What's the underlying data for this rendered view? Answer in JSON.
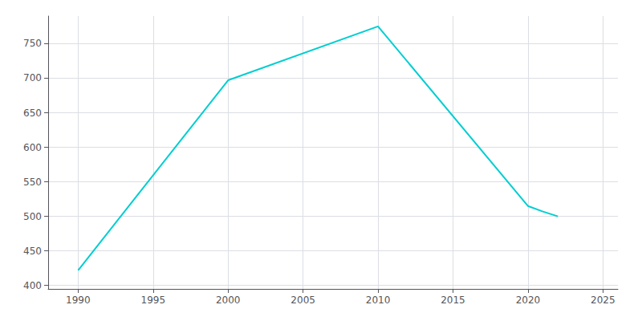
{
  "chart_data": {
    "type": "line",
    "x": [
      1990,
      2000,
      2010,
      2020,
      2021,
      2022
    ],
    "values": [
      422,
      697,
      775,
      515,
      507,
      500
    ],
    "color": "#00CED1",
    "xlim": [
      1988,
      2026
    ],
    "xticks": [
      1990,
      1995,
      2000,
      2005,
      2010,
      2015,
      2020,
      2025
    ],
    "ylim": [
      395,
      790
    ],
    "yticks": [
      400,
      450,
      500,
      550,
      600,
      650,
      700,
      750
    ],
    "grid": true
  }
}
